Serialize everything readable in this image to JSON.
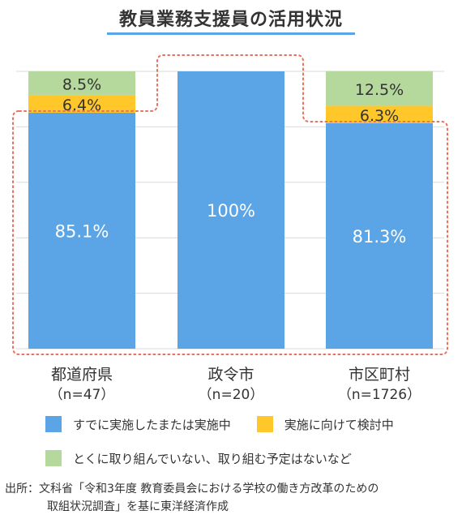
{
  "chart_data": {
    "type": "bar",
    "stacked": true,
    "title": "教員業務支援員の活用状況",
    "categories": [
      "都道府県",
      "政令市",
      "市区町村"
    ],
    "category_sub": [
      "（n=47）",
      "（n=20）",
      "（n=1726）"
    ],
    "series": [
      {
        "name": "すでに実施したまたは実施中",
        "color": "#5ba4e5",
        "values": [
          85.1,
          100,
          81.3
        ],
        "labels": [
          "85.1%",
          "100%",
          "81.3%"
        ]
      },
      {
        "name": "実施に向けて検討中",
        "color": "#ffc729",
        "values": [
          6.4,
          0,
          6.3
        ],
        "labels": [
          "6.4%",
          "",
          "6.3%"
        ]
      },
      {
        "name": "とくに取り組んでいない、取り組む予定はないなど",
        "color": "#b5d89d",
        "values": [
          8.5,
          0,
          12.5
        ],
        "labels": [
          "8.5%",
          "",
          "12.5%"
        ]
      }
    ],
    "ylim": [
      0,
      100
    ],
    "grid": true,
    "legend_position": "bottom",
    "highlight_outline_color": "#e8725e"
  },
  "source": {
    "line1": "出所：文科省「令和3年度 教育委員会における学校の働き方改革のための",
    "line2": "取組状況調査」を基に東洋経済作成"
  }
}
